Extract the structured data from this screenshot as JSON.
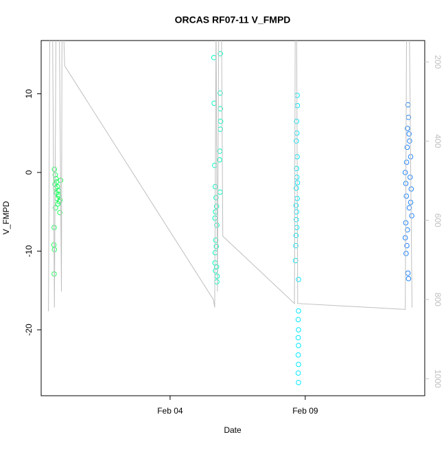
{
  "chart_data": {
    "type": "scatter",
    "title": "ORCAS RF07-11 V_FMPD",
    "xlabel": "Date",
    "ylabel": "V_FMPD",
    "xlim": [
      30.23,
      44.42
    ],
    "xticks": [
      {
        "value": 35,
        "label": "Feb 04"
      },
      {
        "value": 40,
        "label": "Feb 09"
      }
    ],
    "ylim": [
      -28.38,
      16.77
    ],
    "yticks": [
      -20,
      -10,
      0,
      10
    ],
    "y2lim": [
      1043,
      146
    ],
    "y2ticks": [
      200,
      400,
      600,
      800,
      1000
    ],
    "series": [
      {
        "color": "#1fff5f",
        "x": [
          30.72,
          30.75,
          30.78,
          30.8,
          30.74,
          30.83,
          30.77,
          30.86,
          30.79,
          30.88,
          30.82,
          30.9,
          30.85,
          30.76,
          30.92,
          30.71,
          30.7,
          30.72,
          30.71,
          30.95,
          30.87,
          30.93
        ],
        "values": [
          0.4,
          -0.3,
          -0.8,
          -1.2,
          -1.5,
          -1.8,
          -2,
          -2.3,
          -2.6,
          -3,
          -3.3,
          -3.7,
          -4,
          -4.5,
          -5.1,
          -7,
          -9.2,
          -9.8,
          -12.9,
          -1,
          -2.8,
          -3.5
        ]
      },
      {
        "color": "#00ffc0",
        "x": [
          36.62,
          36.86,
          36.85,
          36.63,
          36.86,
          36.87,
          36.86,
          36.84,
          36.83,
          36.65,
          36.67,
          36.85,
          36.7,
          36.72,
          36.68,
          36.66,
          36.73,
          36.69,
          36.71,
          36.67,
          36.66,
          36.72,
          36.68,
          36.74,
          36.73
        ],
        "values": [
          14.6,
          15.1,
          10.1,
          8.8,
          8.1,
          6.5,
          5.5,
          2.7,
          1.6,
          0.9,
          -1.8,
          -2.5,
          -3.2,
          -4.3,
          -5,
          -5.8,
          -6.7,
          -8.6,
          -9.4,
          -10.2,
          -11.5,
          -12,
          -12.5,
          -13.2,
          -13.9
        ]
      },
      {
        "color": "#00e8ff",
        "x": [
          39.7,
          39.71,
          39.68,
          39.69,
          39.67,
          39.7,
          39.68,
          39.69,
          39.71,
          39.67,
          39.7,
          39.66,
          39.68,
          39.67,
          39.69,
          39.66,
          39.65,
          39.64,
          39.75,
          39.75,
          39.74,
          39.75,
          39.74,
          39.75,
          39.74,
          39.75,
          39.74,
          39.75
        ],
        "values": [
          9.8,
          8.5,
          6.5,
          5,
          4,
          2,
          0.5,
          -0.6,
          -1.3,
          -2,
          -3.3,
          -4.2,
          -5,
          -6,
          -7,
          -8,
          -9.3,
          -11.2,
          -13.6,
          -17.6,
          -18.7,
          -20,
          -21,
          -22,
          -23.2,
          -24.4,
          -25.5,
          -26.7
        ]
      },
      {
        "color": "#1c84ff",
        "x": [
          43.8,
          43.82,
          43.78,
          43.84,
          43.86,
          43.77,
          43.9,
          43.75,
          43.7,
          43.88,
          43.72,
          43.92,
          43.74,
          43.9,
          43.85,
          43.94,
          43.72,
          43.78,
          43.7,
          43.76,
          43.73,
          43.8,
          43.82
        ],
        "values": [
          8.6,
          7,
          5.6,
          4.9,
          4,
          3.2,
          2,
          1.3,
          0,
          -0.6,
          -1.4,
          -2.1,
          -3,
          -3.8,
          -4.5,
          -5.5,
          -6.4,
          -7.3,
          -8.3,
          -9.3,
          -10.3,
          -12.8,
          -13.5
        ]
      },
      {
        "color": "#bebebe",
        "axis": "y2",
        "line": true,
        "x": [
          30.5,
          30.55,
          30.65,
          30.72,
          30.78,
          30.9,
          30.98,
          31.0,
          31.05,
          31.1,
          36.6,
          36.65,
          36.7,
          36.75,
          36.8,
          36.9,
          36.95,
          39.6,
          39.63,
          39.68,
          39.72,
          43.7,
          43.75,
          43.85,
          43.95
        ],
        "values": [
          830,
          100,
          100,
          820,
          100,
          100,
          780,
          100,
          100,
          210,
          800,
          820,
          100,
          780,
          100,
          100,
          640,
          810,
          100,
          100,
          810,
          825,
          100,
          100,
          820
        ]
      }
    ]
  }
}
